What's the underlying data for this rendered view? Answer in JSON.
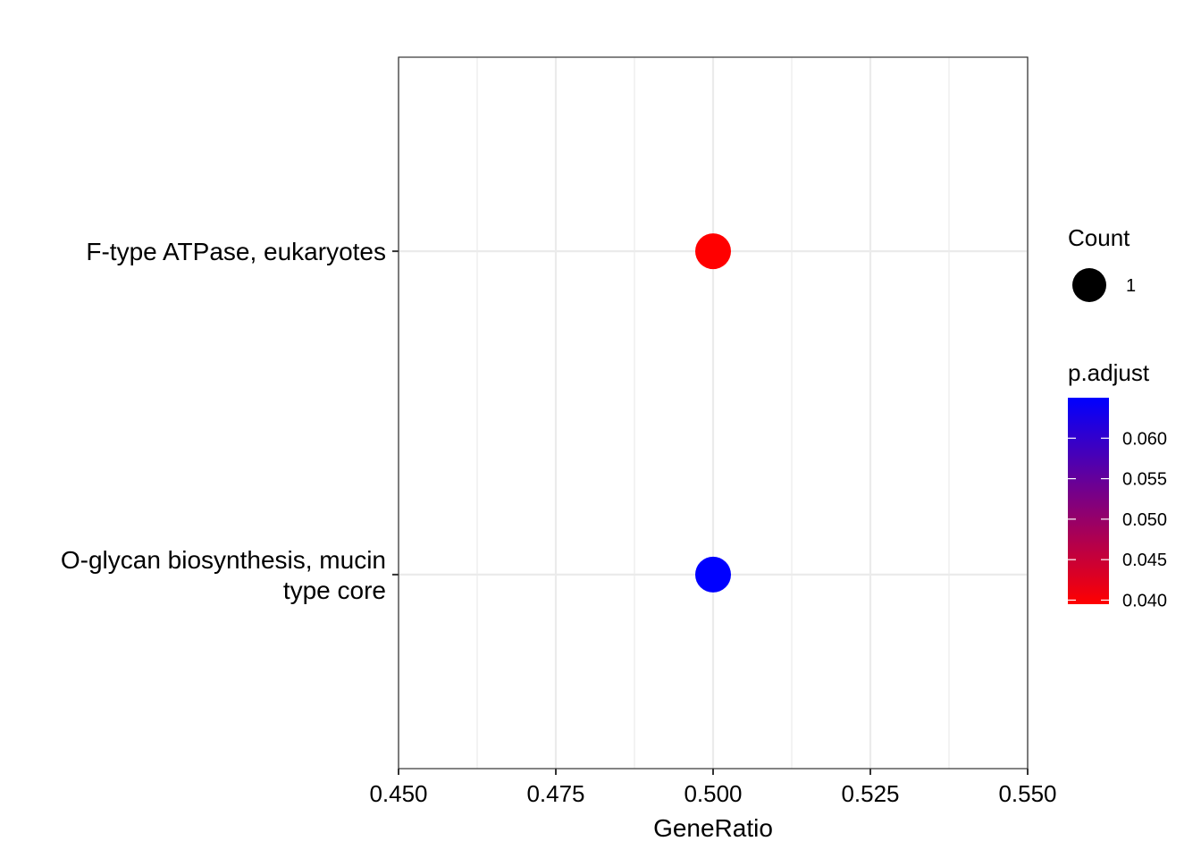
{
  "chart_data": {
    "type": "scatter",
    "xlabel": "GeneRatio",
    "ylabel": "",
    "xlim": [
      0.45,
      0.55
    ],
    "xticks": [
      "0.450",
      "0.475",
      "0.500",
      "0.525",
      "0.550"
    ],
    "categories": [
      "F-type ATPase, eukaryotes",
      [
        "O-glycan biosynthesis, mucin",
        "type core"
      ]
    ],
    "points": [
      {
        "category": "F-type ATPase, eukaryotes",
        "x": 0.5,
        "count": 1,
        "p_adjust": 0.039,
        "color": "#ff0000"
      },
      {
        "category": "O-glycan biosynthesis, mucin type core",
        "x": 0.5,
        "count": 1,
        "p_adjust": 0.065,
        "color": "#0000ff"
      }
    ],
    "grid": true,
    "legend_placement": "right",
    "legends": {
      "size": {
        "title": "Count",
        "items": [
          {
            "label": "1",
            "value": 1
          }
        ]
      },
      "color": {
        "title": "p.adjust",
        "low_color": "#ff0000",
        "high_color": "#0000ff",
        "range": [
          0.0395,
          0.065
        ],
        "ticks": [
          "0.040",
          "0.045",
          "0.050",
          "0.055",
          "0.060"
        ],
        "tick_values": [
          0.04,
          0.045,
          0.05,
          0.055,
          0.06
        ]
      }
    }
  }
}
